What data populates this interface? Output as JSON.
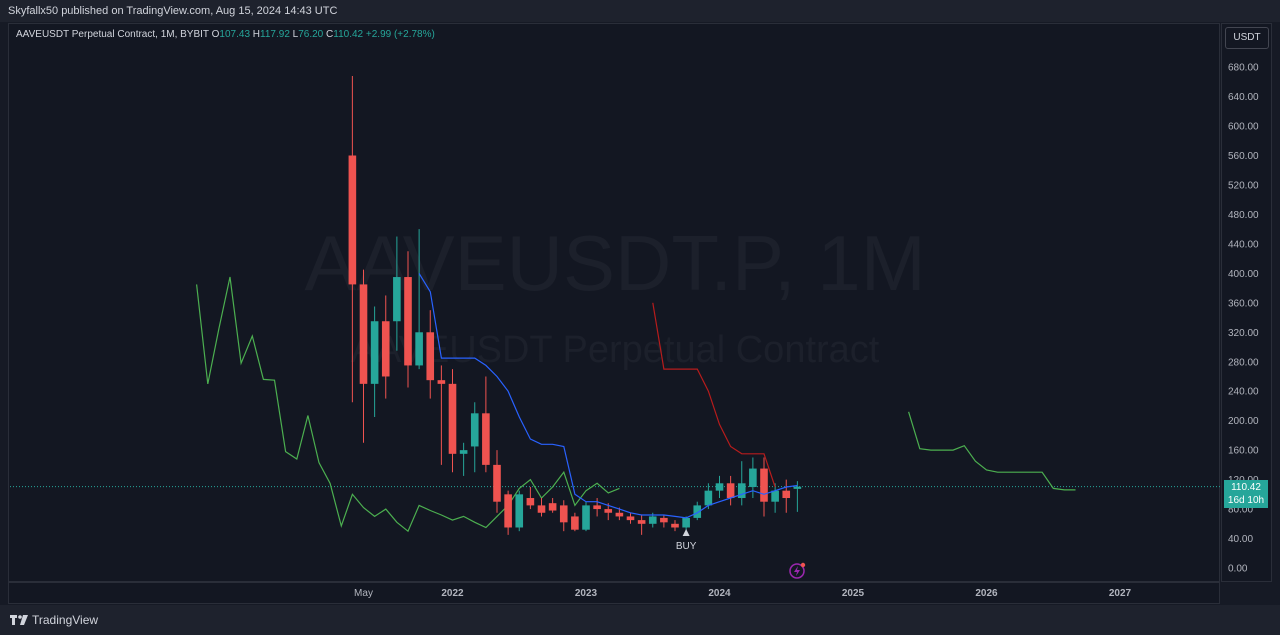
{
  "header": {
    "published": "Skyfallx50 published on TradingView.com, Aug 15, 2024 14:43 UTC"
  },
  "legend": {
    "symbol": "AAVEUSDT Perpetual Contract, 1M, BYBIT",
    "o_label": "O",
    "o_value": "107.43",
    "h_label": "H",
    "h_value": "117.92",
    "l_label": "L",
    "l_value": "76.20",
    "c_label": "C",
    "c_value": "110.42",
    "change": "+2.99 (+2.78%)"
  },
  "watermark": {
    "ticker": "AAVEUSDT.P, 1M",
    "name": "AAVEUSDT Perpetual Contract"
  },
  "currency": "USDT",
  "last_price": {
    "price": "110.42",
    "countdown": "16d 10h"
  },
  "signal_label": "BUY",
  "footer": {
    "brand": "TradingView"
  },
  "colors": {
    "up": "#26a69a",
    "down": "#ef5350",
    "blue_line": "#2962ff",
    "red_line": "#b71c1c",
    "green_line": "#4caf50",
    "bg": "#131722"
  },
  "chart_data": {
    "type": "candlestick",
    "timeframe": "1M",
    "y_ticks": [
      "0.00",
      "40.00",
      "80.00",
      "120.00",
      "160.00",
      "200.00",
      "240.00",
      "280.00",
      "320.00",
      "360.00",
      "400.00",
      "440.00",
      "480.00",
      "520.00",
      "560.00",
      "600.00",
      "640.00",
      "680.00"
    ],
    "ylim": [
      0,
      700
    ],
    "x_ticks": [
      {
        "label": "May",
        "date": "2021-05"
      },
      {
        "label": "2022",
        "date": "2022-01"
      },
      {
        "label": "2023",
        "date": "2023-01"
      },
      {
        "label": "2024",
        "date": "2024-01"
      },
      {
        "label": "2025",
        "date": "2025-01"
      },
      {
        "label": "2026",
        "date": "2026-01"
      },
      {
        "label": "2027",
        "date": "2027-01"
      }
    ],
    "candles": [
      {
        "date": "2021-04",
        "o": 560,
        "h": 668,
        "l": 225,
        "c": 385
      },
      {
        "date": "2021-05",
        "o": 385,
        "h": 405,
        "l": 170,
        "c": 250
      },
      {
        "date": "2021-06",
        "o": 250,
        "h": 355,
        "l": 205,
        "c": 335
      },
      {
        "date": "2021-07",
        "o": 335,
        "h": 370,
        "l": 230,
        "c": 260
      },
      {
        "date": "2021-08",
        "o": 335,
        "h": 450,
        "l": 295,
        "c": 395
      },
      {
        "date": "2021-09",
        "o": 395,
        "h": 430,
        "l": 245,
        "c": 275
      },
      {
        "date": "2021-10",
        "o": 275,
        "h": 460,
        "l": 270,
        "c": 320
      },
      {
        "date": "2021-11",
        "o": 320,
        "h": 350,
        "l": 230,
        "c": 255
      },
      {
        "date": "2021-12",
        "o": 255,
        "h": 275,
        "l": 140,
        "c": 250
      },
      {
        "date": "2022-01",
        "o": 250,
        "h": 270,
        "l": 130,
        "c": 155
      },
      {
        "date": "2022-02",
        "o": 155,
        "h": 170,
        "l": 125,
        "c": 160
      },
      {
        "date": "2022-03",
        "o": 165,
        "h": 225,
        "l": 130,
        "c": 210
      },
      {
        "date": "2022-04",
        "o": 210,
        "h": 260,
        "l": 130,
        "c": 140
      },
      {
        "date": "2022-05",
        "o": 140,
        "h": 160,
        "l": 75,
        "c": 90
      },
      {
        "date": "2022-06",
        "o": 100,
        "h": 105,
        "l": 45,
        "c": 55
      },
      {
        "date": "2022-07",
        "o": 55,
        "h": 105,
        "l": 50,
        "c": 100
      },
      {
        "date": "2022-08",
        "o": 95,
        "h": 110,
        "l": 80,
        "c": 85
      },
      {
        "date": "2022-09",
        "o": 85,
        "h": 95,
        "l": 70,
        "c": 75
      },
      {
        "date": "2022-10",
        "o": 88,
        "h": 95,
        "l": 75,
        "c": 78
      },
      {
        "date": "2022-11",
        "o": 85,
        "h": 92,
        "l": 50,
        "c": 62
      },
      {
        "date": "2022-12",
        "o": 70,
        "h": 75,
        "l": 50,
        "c": 52
      },
      {
        "date": "2023-01",
        "o": 52,
        "h": 90,
        "l": 50,
        "c": 85
      },
      {
        "date": "2023-02",
        "o": 85,
        "h": 95,
        "l": 70,
        "c": 80
      },
      {
        "date": "2023-03",
        "o": 80,
        "h": 88,
        "l": 65,
        "c": 75
      },
      {
        "date": "2023-04",
        "o": 75,
        "h": 82,
        "l": 65,
        "c": 70
      },
      {
        "date": "2023-05",
        "o": 70,
        "h": 75,
        "l": 60,
        "c": 65
      },
      {
        "date": "2023-06",
        "o": 65,
        "h": 72,
        "l": 45,
        "c": 60
      },
      {
        "date": "2023-07",
        "o": 60,
        "h": 75,
        "l": 55,
        "c": 70
      },
      {
        "date": "2023-08",
        "o": 68,
        "h": 72,
        "l": 55,
        "c": 62
      },
      {
        "date": "2023-09",
        "o": 60,
        "h": 65,
        "l": 50,
        "c": 55
      },
      {
        "date": "2023-10",
        "o": 55,
        "h": 70,
        "l": 50,
        "c": 68
      },
      {
        "date": "2023-11",
        "o": 68,
        "h": 90,
        "l": 65,
        "c": 85
      },
      {
        "date": "2023-12",
        "o": 85,
        "h": 115,
        "l": 80,
        "c": 105
      },
      {
        "date": "2024-01",
        "o": 105,
        "h": 125,
        "l": 95,
        "c": 115
      },
      {
        "date": "2024-02",
        "o": 115,
        "h": 125,
        "l": 85,
        "c": 95
      },
      {
        "date": "2024-03",
        "o": 95,
        "h": 145,
        "l": 85,
        "c": 115
      },
      {
        "date": "2024-04",
        "o": 110,
        "h": 150,
        "l": 95,
        "c": 135
      },
      {
        "date": "2024-05",
        "o": 135,
        "h": 150,
        "l": 70,
        "c": 90
      },
      {
        "date": "2024-06",
        "o": 90,
        "h": 115,
        "l": 75,
        "c": 105
      },
      {
        "date": "2024-07",
        "o": 105,
        "h": 120,
        "l": 75,
        "c": 95
      },
      {
        "date": "2024-08",
        "o": 107.43,
        "h": 117.92,
        "l": 76.2,
        "c": 110.42
      }
    ],
    "blue_line": [
      {
        "date": "2021-10",
        "v": 400
      },
      {
        "date": "2021-11",
        "v": 375
      },
      {
        "date": "2021-12",
        "v": 285
      },
      {
        "date": "2022-01",
        "v": 285
      },
      {
        "date": "2022-02",
        "v": 285
      },
      {
        "date": "2022-03",
        "v": 285
      },
      {
        "date": "2022-04",
        "v": 275
      },
      {
        "date": "2022-05",
        "v": 260
      },
      {
        "date": "2022-06",
        "v": 240
      },
      {
        "date": "2022-07",
        "v": 205
      },
      {
        "date": "2022-08",
        "v": 175
      },
      {
        "date": "2022-09",
        "v": 168
      },
      {
        "date": "2022-10",
        "v": 168
      },
      {
        "date": "2022-11",
        "v": 165
      },
      {
        "date": "2022-12",
        "v": 100
      },
      {
        "date": "2023-01",
        "v": 90
      },
      {
        "date": "2023-02",
        "v": 90
      },
      {
        "date": "2023-03",
        "v": 85
      },
      {
        "date": "2023-04",
        "v": 80
      },
      {
        "date": "2023-05",
        "v": 75
      },
      {
        "date": "2023-06",
        "v": 72
      },
      {
        "date": "2023-07",
        "v": 72
      },
      {
        "date": "2023-08",
        "v": 72
      },
      {
        "date": "2023-09",
        "v": 70
      },
      {
        "date": "2023-10",
        "v": 68
      },
      {
        "date": "2023-11",
        "v": 75
      },
      {
        "date": "2023-12",
        "v": 85
      },
      {
        "date": "2024-01",
        "v": 90
      },
      {
        "date": "2024-02",
        "v": 95
      },
      {
        "date": "2024-03",
        "v": 100
      },
      {
        "date": "2024-04",
        "v": 105
      },
      {
        "date": "2024-05",
        "v": 100
      },
      {
        "date": "2024-06",
        "v": 105
      },
      {
        "date": "2024-07",
        "v": 110
      },
      {
        "date": "2024-08",
        "v": 112
      }
    ],
    "red_line": [
      {
        "date": "2023-07",
        "v": 360
      },
      {
        "date": "2023-08",
        "v": 270
      },
      {
        "date": "2023-09",
        "v": 270
      },
      {
        "date": "2023-10",
        "v": 270
      },
      {
        "date": "2023-11",
        "v": 270
      },
      {
        "date": "2023-12",
        "v": 240
      },
      {
        "date": "2024-01",
        "v": 195
      },
      {
        "date": "2024-02",
        "v": 165
      },
      {
        "date": "2024-03",
        "v": 155
      },
      {
        "date": "2024-04",
        "v": 155
      },
      {
        "date": "2024-05",
        "v": 155
      },
      {
        "date": "2024-06",
        "v": 110
      }
    ],
    "green_line": [
      {
        "date": "2020-02",
        "v": 385
      },
      {
        "date": "2020-03",
        "v": 250
      },
      {
        "date": "2020-04",
        "v": 325
      },
      {
        "date": "2020-05",
        "v": 395
      },
      {
        "date": "2020-06",
        "v": 278
      },
      {
        "date": "2020-07",
        "v": 315
      },
      {
        "date": "2020-08",
        "v": 256
      },
      {
        "date": "2020-09",
        "v": 255
      },
      {
        "date": "2020-10",
        "v": 158
      },
      {
        "date": "2020-11",
        "v": 148
      },
      {
        "date": "2020-12",
        "v": 207
      },
      {
        "date": "2021-01",
        "v": 143
      },
      {
        "date": "2021-02",
        "v": 115
      },
      {
        "date": "2021-03",
        "v": 57
      },
      {
        "date": "2021-04",
        "v": 100
      },
      {
        "date": "2021-05",
        "v": 82
      },
      {
        "date": "2021-06",
        "v": 70
      },
      {
        "date": "2021-07",
        "v": 80
      },
      {
        "date": "2021-08",
        "v": 62
      },
      {
        "date": "2021-09",
        "v": 50
      },
      {
        "date": "2021-10",
        "v": 85
      },
      {
        "date": "2021-11",
        "v": 78
      },
      {
        "date": "2021-12",
        "v": 72
      },
      {
        "date": "2022-01",
        "v": 65
      },
      {
        "date": "2022-02",
        "v": 70
      },
      {
        "date": "2022-03",
        "v": 62
      },
      {
        "date": "2022-04",
        "v": 55
      },
      {
        "date": "2022-05",
        "v": 70
      },
      {
        "date": "2022-06",
        "v": 85
      },
      {
        "date": "2022-07",
        "v": 108
      },
      {
        "date": "2022-08",
        "v": 120
      },
      {
        "date": "2022-09",
        "v": 95
      },
      {
        "date": "2022-10",
        "v": 110
      },
      {
        "date": "2022-11",
        "v": 130
      },
      {
        "date": "2022-12",
        "v": 85
      },
      {
        "date": "2023-01",
        "v": 105
      },
      {
        "date": "2023-02",
        "v": 115
      },
      {
        "date": "2023-03",
        "v": 102
      },
      {
        "date": "2023-04",
        "v": 108
      }
    ],
    "green_line_future": [
      {
        "date": "2025-06",
        "v": 212
      },
      {
        "date": "2025-07",
        "v": 162
      },
      {
        "date": "2025-08",
        "v": 160
      },
      {
        "date": "2025-09",
        "v": 160
      },
      {
        "date": "2025-10",
        "v": 160
      },
      {
        "date": "2025-11",
        "v": 166
      },
      {
        "date": "2025-12",
        "v": 145
      },
      {
        "date": "2026-01",
        "v": 133
      },
      {
        "date": "2026-02",
        "v": 130
      },
      {
        "date": "2026-03",
        "v": 130
      },
      {
        "date": "2026-04",
        "v": 130
      },
      {
        "date": "2026-05",
        "v": 130
      },
      {
        "date": "2026-06",
        "v": 130
      },
      {
        "date": "2026-07",
        "v": 108
      },
      {
        "date": "2026-08",
        "v": 106
      },
      {
        "date": "2026-09",
        "v": 106
      }
    ],
    "current_price": 110.42,
    "signals": [
      {
        "date": "2023-10",
        "type": "buy"
      }
    ]
  }
}
